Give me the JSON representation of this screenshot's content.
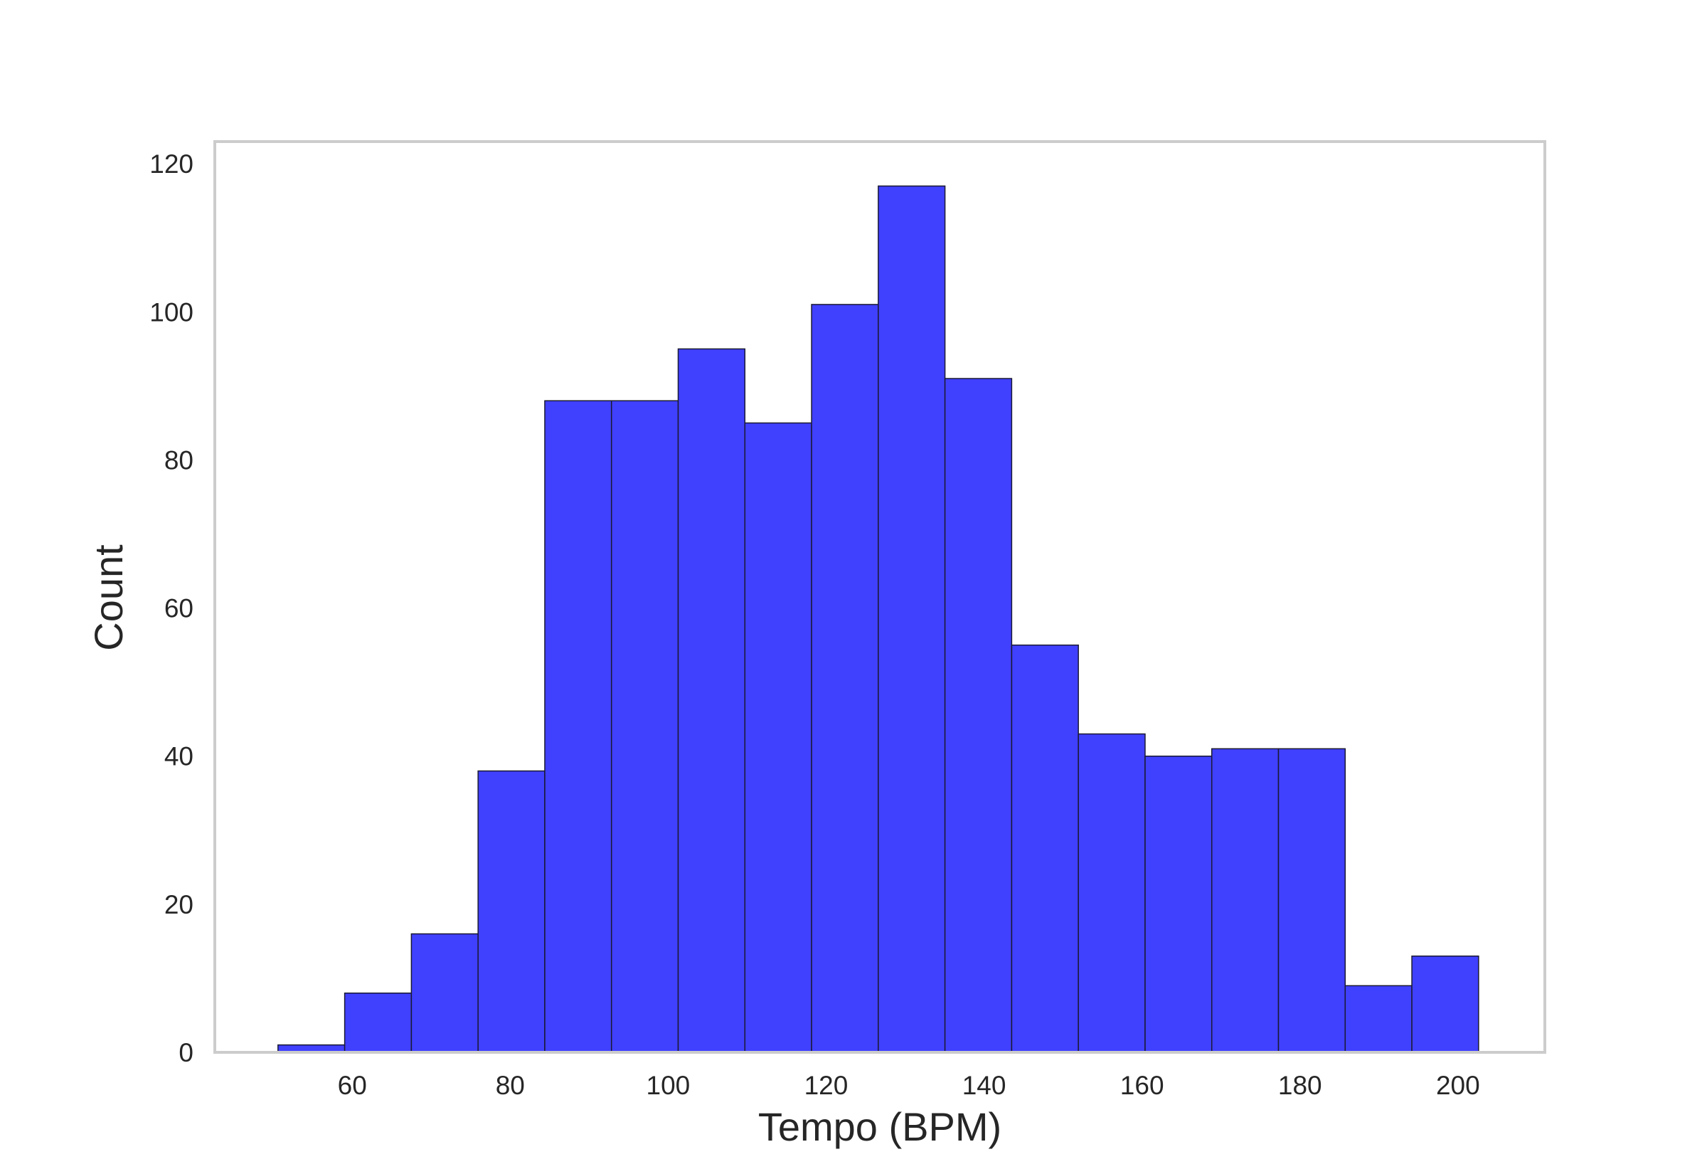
{
  "chart_data": {
    "type": "bar",
    "title": "",
    "xlabel": "Tempo (BPM)",
    "ylabel": "Count",
    "bins": {
      "start": 50.6,
      "width": 8.445
    },
    "values": [
      1,
      8,
      16,
      38,
      88,
      88,
      95,
      85,
      101,
      117,
      91,
      55,
      43,
      40,
      41,
      41,
      9,
      13
    ],
    "xlim": [
      42.6,
      211.0
    ],
    "ylim": [
      0,
      123
    ],
    "xticks": [
      60,
      80,
      100,
      120,
      140,
      160,
      180,
      200
    ],
    "yticks": [
      0,
      20,
      40,
      60,
      80,
      100,
      120
    ],
    "grid": false,
    "legend": "none",
    "colors": {
      "bar_fill": "#4040ff",
      "bar_edge": "#1a1a33",
      "frame": "#cccccc",
      "text": "#262626"
    }
  }
}
